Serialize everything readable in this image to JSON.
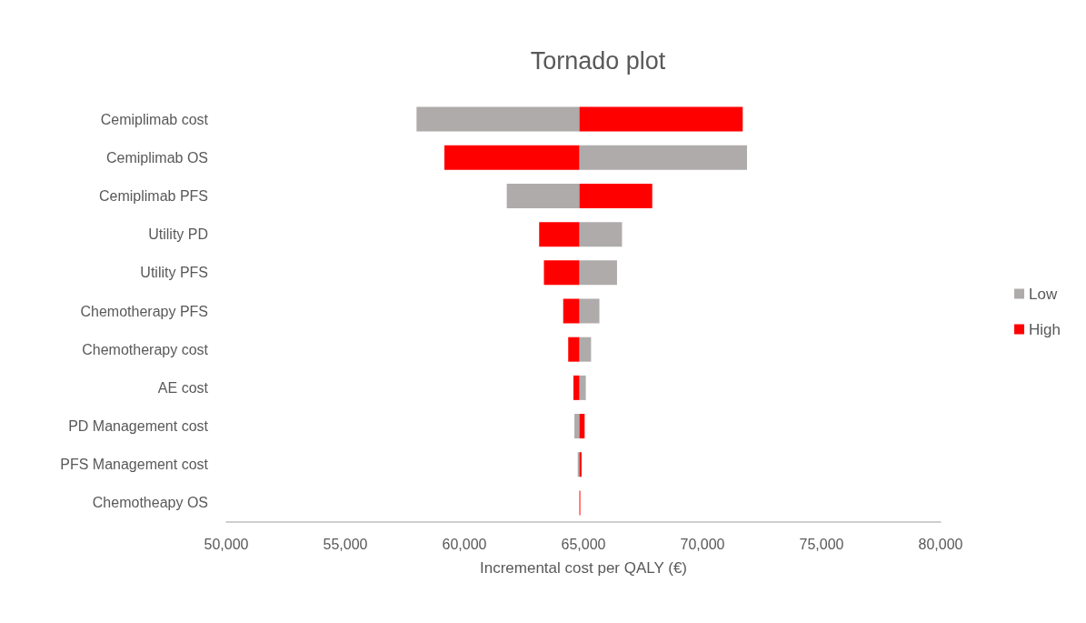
{
  "chart_data": {
    "type": "bar",
    "orientation": "horizontal",
    "title": "Tornado plot",
    "xlabel": "Incremental cost per QALY (€)",
    "categories": [
      "Cemiplimab cost",
      "Cemiplimab OS",
      "Cemiplimab PFS",
      "Utility PD",
      "Utility PFS",
      "Chemotherapy PFS",
      "Chemotherapy cost",
      "AE cost",
      "PD Management cost",
      "PFS Management cost",
      "Chemotheapy OS"
    ],
    "series": [
      {
        "name": "Low",
        "color": "#afabab",
        "base": [
          64830,
          64830,
          64830,
          64830,
          64830,
          64830,
          64830,
          64830,
          64830,
          64830,
          null
        ],
        "values": [
          -6840,
          7040,
          -3050,
          1790,
          1580,
          840,
          490,
          270,
          -210,
          -70,
          null
        ]
      },
      {
        "name": "High",
        "color": "#ff0000",
        "base": [
          64830,
          64830,
          64830,
          64830,
          64830,
          64830,
          64830,
          64830,
          64830,
          64830,
          64830
        ],
        "values": [
          6860,
          -5670,
          3060,
          -1690,
          -1490,
          -680,
          -470,
          -250,
          220,
          90,
          30
        ]
      }
    ],
    "xlim": [
      50000,
      80000
    ],
    "xticks": [
      {
        "value": 50000,
        "label": "50,000"
      },
      {
        "value": 55000,
        "label": "55,000"
      },
      {
        "value": 60000,
        "label": "60,000"
      },
      {
        "value": 65000,
        "label": "65,000"
      },
      {
        "value": 70000,
        "label": "70,000"
      },
      {
        "value": 75000,
        "label": "75,000"
      },
      {
        "value": 80000,
        "label": "80,000"
      }
    ],
    "grid": false,
    "legend": "right"
  }
}
